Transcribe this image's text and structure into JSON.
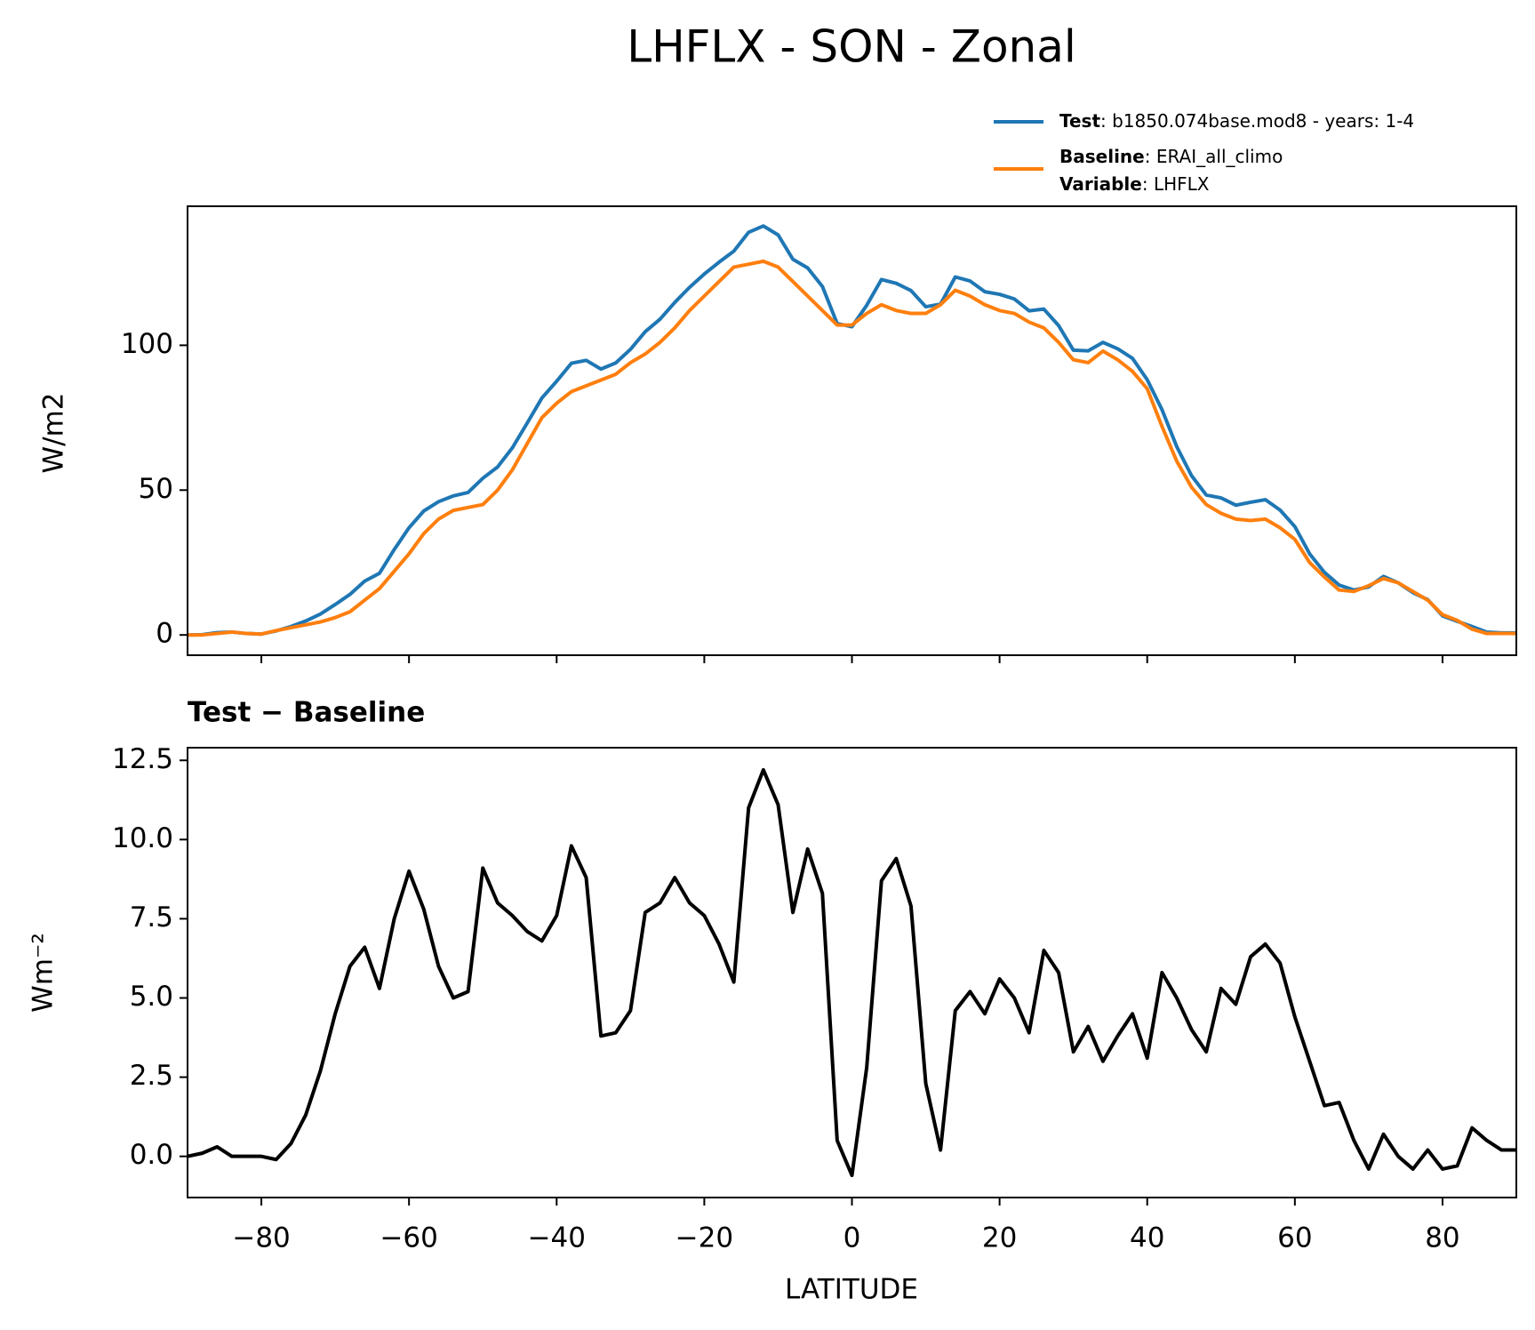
{
  "chart_data": [
    {
      "type": "line",
      "title": "LHFLX - SON - Zonal",
      "ylabel": "W/m2",
      "x": [
        -90,
        -88,
        -86,
        -84,
        -82,
        -80,
        -78,
        -76,
        -74,
        -72,
        -70,
        -68,
        -66,
        -64,
        -62,
        -60,
        -58,
        -56,
        -54,
        -52,
        -50,
        -48,
        -46,
        -44,
        -42,
        -40,
        -38,
        -36,
        -34,
        -32,
        -30,
        -28,
        -26,
        -24,
        -22,
        -20,
        -18,
        -16,
        -14,
        -12,
        -10,
        -8,
        -6,
        -4,
        -2,
        0,
        2,
        4,
        6,
        8,
        10,
        12,
        14,
        16,
        18,
        20,
        22,
        24,
        26,
        28,
        30,
        32,
        34,
        36,
        38,
        40,
        42,
        44,
        46,
        48,
        50,
        52,
        54,
        56,
        58,
        60,
        62,
        64,
        66,
        68,
        70,
        72,
        74,
        76,
        78,
        80,
        82,
        84,
        86,
        88,
        90
      ],
      "series": [
        {
          "name": "Test",
          "case": ": b1850.074base.mod8 - years: 1-4",
          "color": "#1f77b4",
          "values": [
            0,
            0.1,
            0.8,
            1,
            0.5,
            0.3,
            1.4,
            2.9,
            4.8,
            7.2,
            10.5,
            14,
            18.6,
            21.3,
            29.5,
            37,
            42.8,
            46,
            48,
            49.2,
            54.1,
            58,
            64.6,
            73.1,
            81.8,
            87.6,
            93.8,
            94.8,
            91.8,
            93.9,
            98.6,
            104.7,
            109,
            114.8,
            120,
            124.6,
            128.7,
            132.5,
            139,
            141.2,
            138.1,
            129.7,
            126.7,
            120.3,
            107.5,
            106.4,
            113.8,
            122.7,
            121.4,
            118.9,
            113.3,
            114.2,
            123.6,
            122.2,
            118.5,
            117.6,
            116,
            111.9,
            112.5,
            106.8,
            98.3,
            98.1,
            101,
            98.8,
            95.5,
            88.1,
            77.8,
            65,
            55,
            48.3,
            47.3,
            44.8,
            45.8,
            46.7,
            43.1,
            37.4,
            28,
            21.6,
            17.2,
            15.5,
            16.6,
            20.2,
            18,
            14.6,
            12.2,
            6.6,
            4.7,
            2.9,
            1,
            0.7,
            0.7
          ]
        },
        {
          "name": "Baseline",
          "case": ": ERAI_all_climo",
          "color": "#ff7f0e",
          "values": [
            0,
            0,
            0.5,
            1,
            0.5,
            0.3,
            1.5,
            2.5,
            3.5,
            4.5,
            6,
            8,
            12,
            16,
            22,
            28,
            35,
            40,
            43,
            44,
            45,
            50,
            57,
            66,
            75,
            80,
            84,
            86,
            88,
            90,
            94,
            97,
            101,
            106,
            112,
            117,
            122,
            127,
            128,
            129,
            127,
            122,
            117,
            112,
            107,
            107,
            111,
            114,
            112,
            111,
            111,
            114,
            119,
            117,
            114,
            112,
            111,
            108,
            106,
            101,
            95,
            94,
            98,
            95,
            91,
            85,
            72,
            60,
            51,
            45,
            42,
            40,
            39.5,
            40,
            37,
            33,
            25,
            20,
            15.5,
            15,
            17,
            19.5,
            18,
            15,
            12,
            7,
            5,
            2,
            0.5,
            0.5,
            0.5
          ]
        }
      ],
      "variable_label": "Variable",
      "variable": ": LHFLX",
      "xlim": [
        -90,
        90
      ],
      "xticks": [
        -80,
        -60,
        -40,
        -20,
        0,
        20,
        40,
        60,
        80
      ],
      "ylim": [
        -7,
        148
      ],
      "yticks": [
        0,
        50,
        100
      ]
    },
    {
      "type": "line",
      "title": "Test − Baseline",
      "xlabel": "LATITUDE",
      "ylabel": "Wm⁻²",
      "x": [
        -90,
        -88,
        -86,
        -84,
        -82,
        -80,
        -78,
        -76,
        -74,
        -72,
        -70,
        -68,
        -66,
        -64,
        -62,
        -60,
        -58,
        -56,
        -54,
        -52,
        -50,
        -48,
        -46,
        -44,
        -42,
        -40,
        -38,
        -36,
        -34,
        -32,
        -30,
        -28,
        -26,
        -24,
        -22,
        -20,
        -18,
        -16,
        -14,
        -12,
        -10,
        -8,
        -6,
        -4,
        -2,
        0,
        2,
        4,
        6,
        8,
        10,
        12,
        14,
        16,
        18,
        20,
        22,
        24,
        26,
        28,
        30,
        32,
        34,
        36,
        38,
        40,
        42,
        44,
        46,
        48,
        50,
        52,
        54,
        56,
        58,
        60,
        62,
        64,
        66,
        68,
        70,
        72,
        74,
        76,
        78,
        80,
        82,
        84,
        86,
        88,
        90
      ],
      "series": [
        {
          "color": "#000000",
          "values": [
            0,
            0.1,
            0.3,
            0,
            0,
            0,
            -0.1,
            0.4,
            1.3,
            2.7,
            4.5,
            6,
            6.6,
            5.3,
            7.5,
            9,
            7.8,
            6,
            5,
            5.2,
            9.1,
            8,
            7.6,
            7.1,
            6.8,
            7.6,
            9.8,
            8.8,
            3.8,
            3.9,
            4.6,
            7.7,
            8,
            8.8,
            8,
            7.6,
            6.7,
            5.5,
            11,
            12.2,
            11.1,
            7.7,
            9.7,
            8.3,
            0.5,
            -0.6,
            2.8,
            8.7,
            9.4,
            7.9,
            2.3,
            0.2,
            4.6,
            5.2,
            4.5,
            5.6,
            5,
            3.9,
            6.5,
            5.8,
            3.3,
            4.1,
            3,
            3.8,
            4.5,
            3.1,
            5.8,
            5,
            4,
            3.3,
            5.3,
            4.8,
            6.3,
            6.7,
            6.1,
            4.4,
            3,
            1.6,
            1.7,
            0.5,
            -0.4,
            0.7,
            0,
            -0.4,
            0.2,
            -0.4,
            -0.3,
            0.9,
            0.5,
            0.2,
            0.2
          ]
        }
      ],
      "xlim": [
        -90,
        90
      ],
      "xticks": [
        {
          "value": -80,
          "label": "−80"
        },
        {
          "value": -60,
          "label": "−60"
        },
        {
          "value": -40,
          "label": "−40"
        },
        {
          "value": -20,
          "label": "−20"
        },
        0,
        20,
        40,
        60,
        80
      ],
      "ylim": [
        -1.3,
        12.9
      ],
      "yticks": [
        {
          "value": 0,
          "label": "0.0"
        },
        2.5,
        {
          "value": 5,
          "label": "5.0"
        },
        7.5,
        {
          "value": 10,
          "label": "10.0"
        },
        12.5
      ]
    }
  ]
}
